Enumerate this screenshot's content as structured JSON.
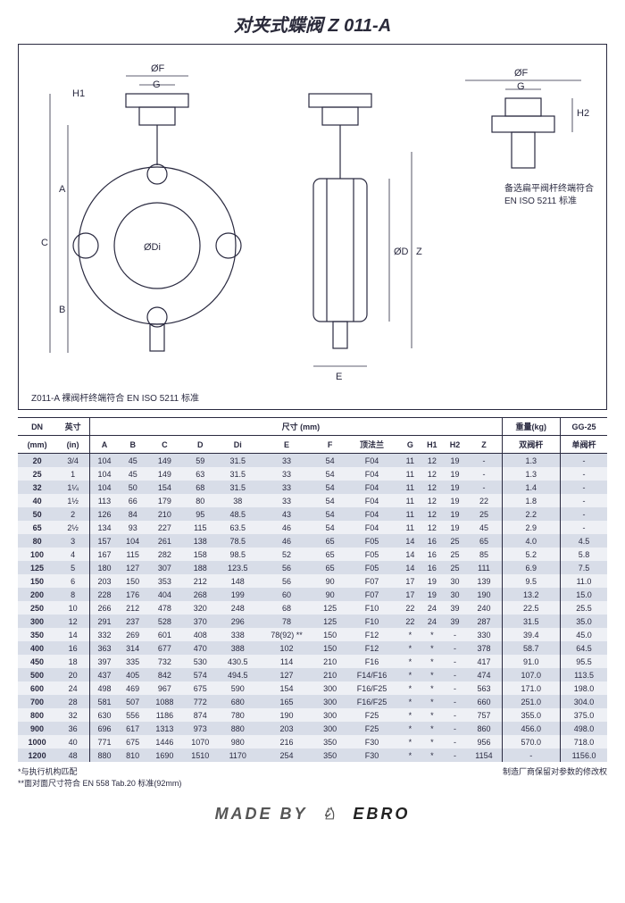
{
  "title": "对夹式蝶阀 Z 011-A",
  "diagram": {
    "labels": [
      "ØF",
      "G",
      "H1",
      "A",
      "C",
      "ØDi",
      "B",
      "ØD",
      "Z",
      "E",
      "ØF",
      "G",
      "H2"
    ],
    "note_right_1": "备选扁平阀杆终端符合",
    "note_right_2": "EN ISO 5211 标准",
    "note_bottom": "Z011-A 裸阀杆终端符合 EN ISO 5211 标准",
    "stroke": "#2a2a40"
  },
  "table": {
    "header_group_dim": "尺寸 (mm)",
    "header_group_wt": "重量(kg)",
    "columns_top": [
      "DN",
      "英寸",
      "",
      "",
      "",
      "",
      "",
      "尺寸 (mm)",
      "",
      "",
      "",
      "",
      "",
      "",
      "重量(kg)",
      "GG-25"
    ],
    "columns": [
      "(mm)",
      "(in)",
      "A",
      "B",
      "C",
      "D",
      "Di",
      "E",
      "F",
      "顶法兰",
      "G",
      "H1",
      "H2",
      "Z",
      "双阀杆",
      "单阀杆"
    ],
    "rows": [
      [
        "20",
        "3/4",
        "104",
        "45",
        "149",
        "59",
        "31.5",
        "33",
        "54",
        "F04",
        "11",
        "12",
        "19",
        "-",
        "1.3",
        "-"
      ],
      [
        "25",
        "1",
        "104",
        "45",
        "149",
        "63",
        "31.5",
        "33",
        "54",
        "F04",
        "11",
        "12",
        "19",
        "-",
        "1.3",
        "-"
      ],
      [
        "32",
        "1¼",
        "104",
        "50",
        "154",
        "68",
        "31.5",
        "33",
        "54",
        "F04",
        "11",
        "12",
        "19",
        "-",
        "1.4",
        "-"
      ],
      [
        "40",
        "1½",
        "113",
        "66",
        "179",
        "80",
        "38",
        "33",
        "54",
        "F04",
        "11",
        "12",
        "19",
        "22",
        "1.8",
        "-"
      ],
      [
        "50",
        "2",
        "126",
        "84",
        "210",
        "95",
        "48.5",
        "43",
        "54",
        "F04",
        "11",
        "12",
        "19",
        "25",
        "2.2",
        "-"
      ],
      [
        "65",
        "2½",
        "134",
        "93",
        "227",
        "115",
        "63.5",
        "46",
        "54",
        "F04",
        "11",
        "12",
        "19",
        "45",
        "2.9",
        "-"
      ],
      [
        "80",
        "3",
        "157",
        "104",
        "261",
        "138",
        "78.5",
        "46",
        "65",
        "F05",
        "14",
        "16",
        "25",
        "65",
        "4.0",
        "4.5"
      ],
      [
        "100",
        "4",
        "167",
        "115",
        "282",
        "158",
        "98.5",
        "52",
        "65",
        "F05",
        "14",
        "16",
        "25",
        "85",
        "5.2",
        "5.8"
      ],
      [
        "125",
        "5",
        "180",
        "127",
        "307",
        "188",
        "123.5",
        "56",
        "65",
        "F05",
        "14",
        "16",
        "25",
        "111",
        "6.9",
        "7.5"
      ],
      [
        "150",
        "6",
        "203",
        "150",
        "353",
        "212",
        "148",
        "56",
        "90",
        "F07",
        "17",
        "19",
        "30",
        "139",
        "9.5",
        "11.0"
      ],
      [
        "200",
        "8",
        "228",
        "176",
        "404",
        "268",
        "199",
        "60",
        "90",
        "F07",
        "17",
        "19",
        "30",
        "190",
        "13.2",
        "15.0"
      ],
      [
        "250",
        "10",
        "266",
        "212",
        "478",
        "320",
        "248",
        "68",
        "125",
        "F10",
        "22",
        "24",
        "39",
        "240",
        "22.5",
        "25.5"
      ],
      [
        "300",
        "12",
        "291",
        "237",
        "528",
        "370",
        "296",
        "78",
        "125",
        "F10",
        "22",
        "24",
        "39",
        "287",
        "31.5",
        "35.0"
      ],
      [
        "350",
        "14",
        "332",
        "269",
        "601",
        "408",
        "338",
        "78(92) **",
        "150",
        "F12",
        "*",
        "*",
        "-",
        "330",
        "39.4",
        "45.0"
      ],
      [
        "400",
        "16",
        "363",
        "314",
        "677",
        "470",
        "388",
        "102",
        "150",
        "F12",
        "*",
        "*",
        "-",
        "378",
        "58.7",
        "64.5"
      ],
      [
        "450",
        "18",
        "397",
        "335",
        "732",
        "530",
        "430.5",
        "114",
        "210",
        "F16",
        "*",
        "*",
        "-",
        "417",
        "91.0",
        "95.5"
      ],
      [
        "500",
        "20",
        "437",
        "405",
        "842",
        "574",
        "494.5",
        "127",
        "210",
        "F14/F16",
        "*",
        "*",
        "-",
        "474",
        "107.0",
        "113.5"
      ],
      [
        "600",
        "24",
        "498",
        "469",
        "967",
        "675",
        "590",
        "154",
        "300",
        "F16/F25",
        "*",
        "*",
        "-",
        "563",
        "171.0",
        "198.0"
      ],
      [
        "700",
        "28",
        "581",
        "507",
        "1088",
        "772",
        "680",
        "165",
        "300",
        "F16/F25",
        "*",
        "*",
        "-",
        "660",
        "251.0",
        "304.0"
      ],
      [
        "800",
        "32",
        "630",
        "556",
        "1186",
        "874",
        "780",
        "190",
        "300",
        "F25",
        "*",
        "*",
        "-",
        "757",
        "355.0",
        "375.0"
      ],
      [
        "900",
        "36",
        "696",
        "617",
        "1313",
        "973",
        "880",
        "203",
        "300",
        "F25",
        "*",
        "*",
        "-",
        "860",
        "456.0",
        "498.0"
      ],
      [
        "1000",
        "40",
        "771",
        "675",
        "1446",
        "1070",
        "980",
        "216",
        "350",
        "F30",
        "*",
        "*",
        "-",
        "956",
        "570.0",
        "718.0"
      ],
      [
        "1200",
        "48",
        "880",
        "810",
        "1690",
        "1510",
        "1170",
        "254",
        "350",
        "F30",
        "*",
        "*",
        "-",
        "1154",
        "-",
        "1156.0"
      ]
    ],
    "row_bg_even": "#d8dde8",
    "row_bg_odd": "#eef0f5"
  },
  "footnotes": {
    "left1": "*与执行机构匹配",
    "left2": "**面对面尺寸符合 EN 558 Tab.20 标准(92mm)",
    "right": "制造厂商保留对参数的修改权"
  },
  "brand": {
    "made": "MADE BY",
    "name": "EBRO"
  }
}
